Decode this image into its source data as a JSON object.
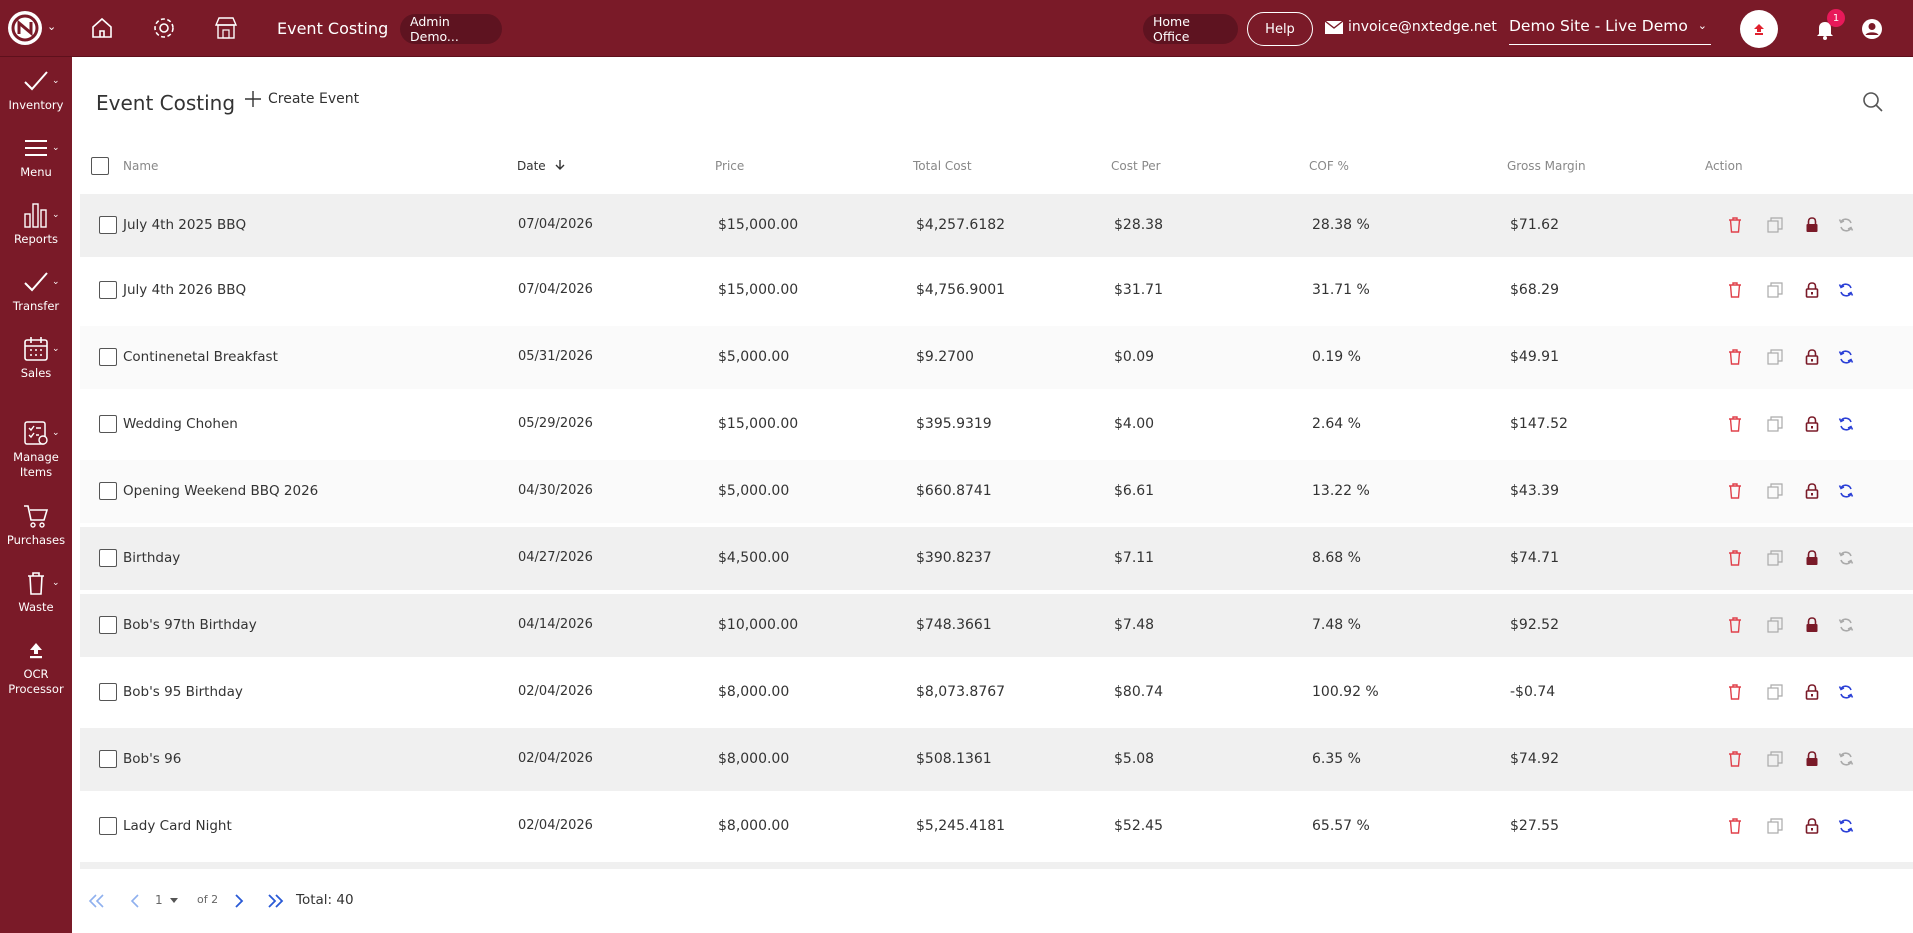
{
  "topbar": {
    "title": "Event Costing",
    "user_pill": "Admin Demo...",
    "office": "Home Office",
    "help": "Help",
    "email": "invoice@nxtedge.net",
    "site": "Demo Site - Live Demo",
    "notification_count": "1"
  },
  "sidebar": {
    "items": [
      {
        "label": "Inventory",
        "icon": "check-icon"
      },
      {
        "label": "Menu",
        "icon": "menu-icon"
      },
      {
        "label": "Reports",
        "icon": "bar-chart-icon"
      },
      {
        "label": "Transfer",
        "icon": "check-icon"
      },
      {
        "label": "Sales",
        "icon": "calendar-icon"
      },
      {
        "label": "Manage\nItems",
        "icon": "checklist-icon"
      },
      {
        "label": "Purchases",
        "icon": "cart-icon"
      },
      {
        "label": "Waste",
        "icon": "trash-icon"
      },
      {
        "label": "OCR\nProcessor",
        "icon": "upload-icon"
      }
    ]
  },
  "page": {
    "title": "Event Costing",
    "create_label": "Create Event"
  },
  "table": {
    "columns": [
      "Name",
      "Date",
      "Price",
      "Total Cost",
      "Cost Per",
      "COF %",
      "Gross Margin",
      "Action"
    ],
    "rows": [
      {
        "name": "July 4th 2025 BBQ",
        "date": "07/04/2026",
        "price": "$15,000.00",
        "total": "$4,257.6182",
        "per": "$28.38",
        "cof": "28.38 %",
        "margin": "$71.62",
        "locked": true,
        "sync": false
      },
      {
        "name": "July 4th 2026 BBQ",
        "date": "07/04/2026",
        "price": "$15,000.00",
        "total": "$4,756.9001",
        "per": "$31.71",
        "cof": "31.71 %",
        "margin": "$68.29",
        "locked": false,
        "sync": true
      },
      {
        "name": "Continenetal Breakfast",
        "date": "05/31/2026",
        "price": "$5,000.00",
        "total": "$9.2700",
        "per": "$0.09",
        "cof": "0.19 %",
        "margin": "$49.91",
        "locked": false,
        "sync": true
      },
      {
        "name": "Wedding Chohen",
        "date": "05/29/2026",
        "price": "$15,000.00",
        "total": "$395.9319",
        "per": "$4.00",
        "cof": "2.64 %",
        "margin": "$147.52",
        "locked": false,
        "sync": true
      },
      {
        "name": "Opening Weekend BBQ 2026",
        "date": "04/30/2026",
        "price": "$5,000.00",
        "total": "$660.8741",
        "per": "$6.61",
        "cof": "13.22 %",
        "margin": "$43.39",
        "locked": false,
        "sync": true
      },
      {
        "name": "Birthday",
        "date": "04/27/2026",
        "price": "$4,500.00",
        "total": "$390.8237",
        "per": "$7.11",
        "cof": "8.68 %",
        "margin": "$74.71",
        "locked": true,
        "sync": false
      },
      {
        "name": "Bob's 97th Birthday",
        "date": "04/14/2026",
        "price": "$10,000.00",
        "total": "$748.3661",
        "per": "$7.48",
        "cof": "7.48 %",
        "margin": "$92.52",
        "locked": true,
        "sync": false
      },
      {
        "name": "Bob's 95 Birthday",
        "date": "02/04/2026",
        "price": "$8,000.00",
        "total": "$8,073.8767",
        "per": "$80.74",
        "cof": "100.92 %",
        "margin": "-$0.74",
        "locked": false,
        "sync": true
      },
      {
        "name": "Bob's 96",
        "date": "02/04/2026",
        "price": "$8,000.00",
        "total": "$508.1361",
        "per": "$5.08",
        "cof": "6.35 %",
        "margin": "$74.92",
        "locked": true,
        "sync": false
      },
      {
        "name": "Lady Card Night",
        "date": "02/04/2026",
        "price": "$8,000.00",
        "total": "$5,245.4181",
        "per": "$52.45",
        "cof": "65.57 %",
        "margin": "$27.55",
        "locked": false,
        "sync": true
      }
    ]
  },
  "pagination": {
    "page": "1",
    "of": "of 2",
    "total": "Total: 40"
  },
  "colors": {
    "brand": "#7a1a28",
    "delete": "#e0404a",
    "sync": "#2a3fd6",
    "lock": "#7a1a28"
  }
}
